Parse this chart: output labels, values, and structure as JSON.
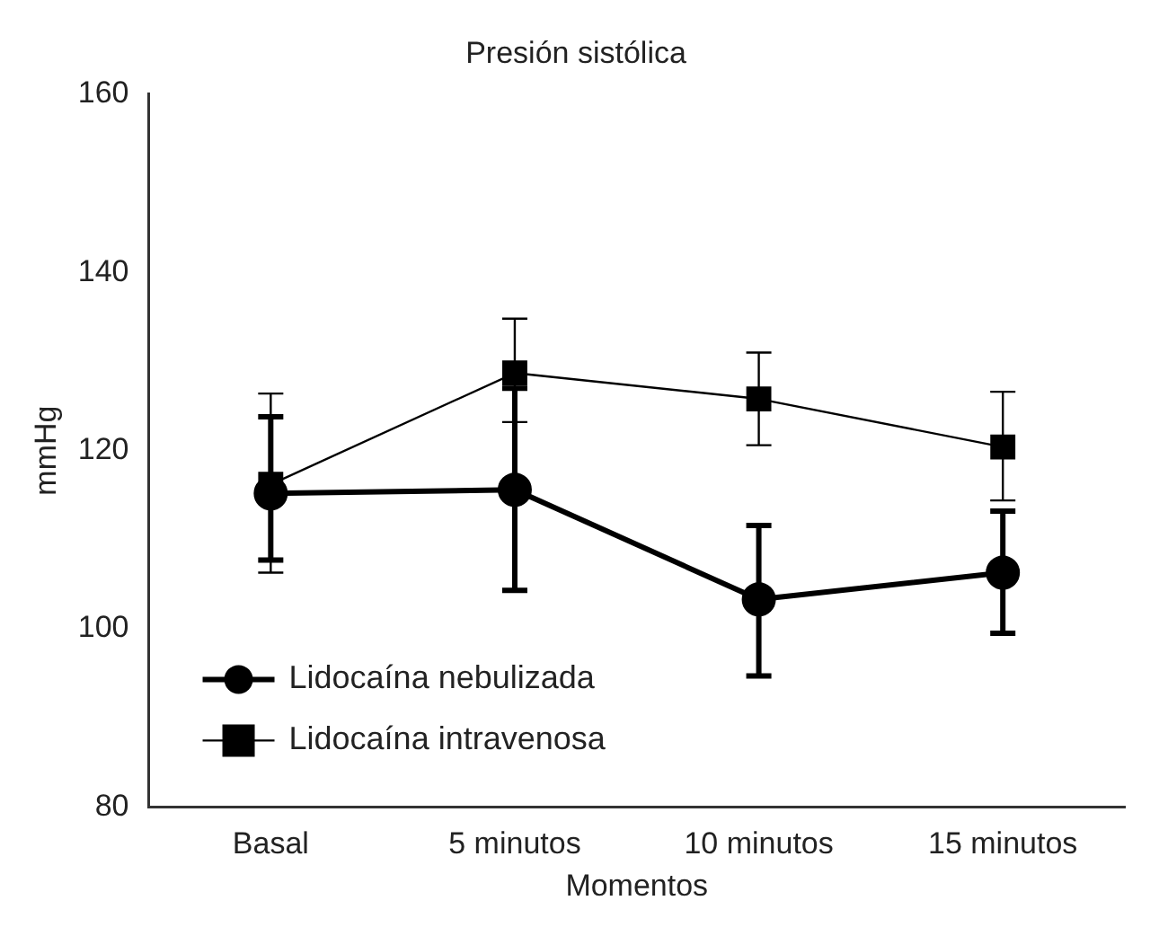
{
  "chart_data": {
    "type": "line",
    "title": "Presión sistólica",
    "xlabel": "Momentos",
    "ylabel": "mmHg",
    "categories": [
      "Basal",
      "5 minutos",
      "10 minutos",
      "15 minutos"
    ],
    "series": [
      {
        "name": "Lidocaína nebulizada",
        "color": "#000000",
        "marker": "circle",
        "values": [
          115.2,
          115.6,
          103.3,
          106.3
        ],
        "errors": [
          [
            107.7,
            123.8
          ],
          [
            104.3,
            127
          ],
          [
            94.7,
            111.6
          ],
          [
            99.5,
            113.2
          ]
        ]
      },
      {
        "name": "Lidocaína intravenosa",
        "color": "#000000",
        "marker": "square",
        "values": [
          116.2,
          128.7,
          125.8,
          120.4
        ],
        "errors": [
          [
            106.3,
            126.4
          ],
          [
            123.2,
            134.8
          ],
          [
            120.6,
            131
          ],
          [
            114.4,
            126.6
          ]
        ]
      }
    ],
    "ylim": [
      80,
      160
    ],
    "yticks": [
      80,
      100,
      120,
      140,
      160
    ],
    "grid": false,
    "legend": "bottom left"
  }
}
